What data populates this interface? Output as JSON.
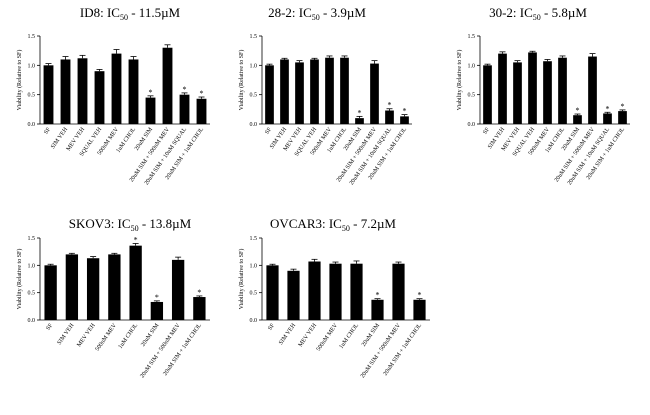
{
  "figure": {
    "background": "#ffffff",
    "bar_color": "#000000"
  },
  "chart_data": [
    {
      "type": "bar",
      "title": {
        "prefix": "ID8: IC",
        "sub": "50",
        "suffix": " - 11.5µM"
      },
      "ylabel": "Viability (Relative to SF)",
      "ylim": [
        0,
        1.5
      ],
      "yticks": [
        "0.0",
        "0.5",
        "1.0",
        "1.5"
      ],
      "categories": [
        "SF",
        "SIM VEH",
        "MEV VEH",
        "SQUAL VEH",
        "500nM MEV",
        "1uM CHOL",
        "20uM SIM",
        "20uM SIM + 500nM MEV",
        "20uM SIM + 10uM SQUAL",
        "20uM SIM + 1uM CHOL"
      ],
      "values": [
        1.0,
        1.1,
        1.12,
        0.9,
        1.2,
        1.1,
        0.45,
        1.3,
        0.5,
        0.43
      ],
      "errors": [
        0.03,
        0.05,
        0.05,
        0.03,
        0.07,
        0.05,
        0.03,
        0.05,
        0.03,
        0.03
      ],
      "significant": [
        false,
        false,
        false,
        false,
        false,
        false,
        true,
        false,
        true,
        true
      ],
      "sig_marker": "*"
    },
    {
      "type": "bar",
      "title": {
        "prefix": "28-2: IC",
        "sub": "50",
        "suffix": " - 3.9µM"
      },
      "ylabel": "Viability (Relative to SF)",
      "ylim": [
        0,
        1.5
      ],
      "yticks": [
        "0.0",
        "0.5",
        "1.0",
        "1.5"
      ],
      "categories": [
        "SF",
        "SIM VEH",
        "MEV VEH",
        "SQUAL VEH",
        "500nM MEV",
        "1uM CHOL",
        "20uM SIM",
        "20uM SIM + 500nM MEV",
        "20uM SIM + 10uM SQUAL",
        "20uM SIM + 1uM CHOL"
      ],
      "values": [
        1.0,
        1.1,
        1.05,
        1.1,
        1.13,
        1.13,
        0.1,
        1.03,
        0.23,
        0.13
      ],
      "errors": [
        0.02,
        0.02,
        0.03,
        0.02,
        0.03,
        0.03,
        0.03,
        0.05,
        0.03,
        0.03
      ],
      "significant": [
        false,
        false,
        false,
        false,
        false,
        false,
        true,
        false,
        true,
        true
      ],
      "sig_marker": "*"
    },
    {
      "type": "bar",
      "title": {
        "prefix": "30-2: IC",
        "sub": "50",
        "suffix": " - 5.8µM"
      },
      "ylabel": "Viability (Relative to SF)",
      "ylim": [
        0,
        1.5
      ],
      "yticks": [
        "0.0",
        "0.5",
        "1.0",
        "1.5"
      ],
      "categories": [
        "SF",
        "SIM VEH",
        "MEV VEH",
        "SQUAL VEH",
        "500nM MEV",
        "1uM CHOL",
        "20uM SIM",
        "20uM SIM + 500nM MEV",
        "20uM SIM + 10uM SQUAL",
        "20uM SIM + 1uM CHOL"
      ],
      "values": [
        1.0,
        1.2,
        1.05,
        1.22,
        1.07,
        1.13,
        0.15,
        1.15,
        0.18,
        0.22
      ],
      "errors": [
        0.02,
        0.03,
        0.03,
        0.02,
        0.03,
        0.03,
        0.02,
        0.05,
        0.02,
        0.02
      ],
      "significant": [
        false,
        false,
        false,
        false,
        false,
        false,
        true,
        false,
        true,
        true
      ],
      "sig_marker": "*"
    },
    {
      "type": "bar",
      "title": {
        "prefix": "SKOV3: IC",
        "sub": "50",
        "suffix": " - 13.8µM"
      },
      "ylabel": "Viability (Relative to SF)",
      "ylim": [
        0,
        1.5
      ],
      "yticks": [
        "0.0",
        "0.5",
        "1.0",
        "1.5"
      ],
      "categories": [
        "SF",
        "SIM VEH",
        "MEV VEH",
        "500nM MEV",
        "1uM CHOL",
        "20uM SIM",
        "20uM SIM + 500nM MEV",
        "20uM SIM + 1uM CHOL"
      ],
      "values": [
        1.0,
        1.2,
        1.13,
        1.2,
        1.36,
        0.33,
        1.1,
        0.42
      ],
      "errors": [
        0.02,
        0.02,
        0.03,
        0.02,
        0.04,
        0.02,
        0.05,
        0.02
      ],
      "significant": [
        false,
        false,
        false,
        false,
        true,
        true,
        false,
        true
      ],
      "sig_marker": "*"
    },
    {
      "type": "bar",
      "title": {
        "prefix": "OVCAR3: IC",
        "sub": "50",
        "suffix": " - 7.2µM"
      },
      "ylabel": "Viability (Relative to SF)",
      "ylim": [
        0,
        1.5
      ],
      "yticks": [
        "0.0",
        "0.5",
        "1.0",
        "1.5"
      ],
      "categories": [
        "SF",
        "SIM VEH",
        "MEV VEH",
        "500nM MEV",
        "1uM CHOL",
        "20uM SIM",
        "20uM SIM + 500nM MEV",
        "20uM SIM + 1uM CHOL"
      ],
      "values": [
        1.0,
        0.9,
        1.07,
        1.03,
        1.03,
        0.37,
        1.03,
        0.37
      ],
      "errors": [
        0.02,
        0.03,
        0.04,
        0.03,
        0.05,
        0.02,
        0.03,
        0.02
      ],
      "significant": [
        false,
        false,
        false,
        false,
        false,
        true,
        false,
        true
      ],
      "sig_marker": "*"
    }
  ]
}
